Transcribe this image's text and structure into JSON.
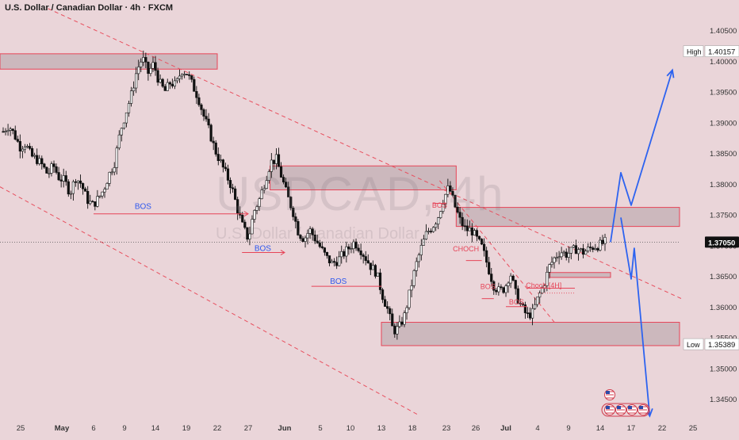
{
  "header": {
    "title": "U.S. Dollar / Canadian Dollar · 4h · FXCM"
  },
  "watermark": {
    "symbol": "USDCAD, 4h",
    "name": "U.S. Dollar / Canadian Dollar"
  },
  "chart_data": {
    "type": "candlestick",
    "ylim": [
      1.3415,
      1.4085
    ],
    "price_ticks": [
      1.405,
      1.4,
      1.395,
      1.39,
      1.385,
      1.38,
      1.375,
      1.37,
      1.365,
      1.36,
      1.355,
      1.35,
      1.345
    ],
    "x_ticks": [
      "25",
      "May",
      "6",
      "9",
      "14",
      "19",
      "22",
      "27",
      "Jun",
      "5",
      "10",
      "13",
      "18",
      "23",
      "26",
      "Jul",
      "4",
      "9",
      "14",
      "17",
      "22",
      "25"
    ],
    "current_price": "1.37050",
    "high_label": {
      "text": "High",
      "value": "1.40157"
    },
    "low_label": {
      "text": "Low",
      "value": "1.35389"
    },
    "price_path": [
      1.3885,
      1.3895,
      1.388,
      1.386,
      1.3865,
      1.3845,
      1.384,
      1.383,
      1.3815,
      1.383,
      1.381,
      1.3805,
      1.3785,
      1.381,
      1.38,
      1.3775,
      1.3765,
      1.3775,
      1.379,
      1.3815,
      1.3835,
      1.3885,
      1.3915,
      1.3945,
      1.3985,
      1.4005,
      1.398,
      1.3995,
      1.3965,
      1.395,
      1.3965,
      1.396,
      1.3985,
      1.398,
      1.396,
      1.394,
      1.391,
      1.3885,
      1.3855,
      1.3835,
      1.3815,
      1.3795,
      1.376,
      1.373,
      1.371,
      1.3755,
      1.3775,
      1.3805,
      1.3835,
      1.384,
      1.381,
      1.378,
      1.3755,
      1.372,
      1.371,
      1.3725,
      1.371,
      1.3695,
      1.368,
      1.367,
      1.3675,
      1.3685,
      1.3695,
      1.3705,
      1.3695,
      1.368,
      1.3665,
      1.3655,
      1.362,
      1.3595,
      1.356,
      1.3565,
      1.3585,
      1.3625,
      1.3665,
      1.3695,
      1.372,
      1.373,
      1.3745,
      1.3775,
      1.3795,
      1.3765,
      1.374,
      1.3725,
      1.3725,
      1.371,
      1.3695,
      1.3665,
      1.3635,
      1.3625,
      1.363,
      1.3655,
      1.362,
      1.36,
      1.3585,
      1.359,
      1.3615,
      1.3635,
      1.3665,
      1.368,
      1.369,
      1.3685,
      1.369,
      1.3695,
      1.3688,
      1.3693,
      1.3698,
      1.37,
      1.3705
    ],
    "zones": [
      {
        "from": "Apr 22",
        "to": "May 22",
        "top": 1.40115,
        "bottom": 1.39865
      },
      {
        "from": "May 30",
        "to": "Jun 24",
        "top": 1.3829,
        "bottom": 1.379
      },
      {
        "from": "Jun 24",
        "to": "Jul 24",
        "top": 1.37615,
        "bottom": 1.37305
      },
      {
        "from": "Jun 13",
        "to": "Jul 24",
        "top": 1.35745,
        "bottom": 1.35365
      },
      {
        "from": "Jul 6",
        "to": "Jul 15",
        "top": 1.36555,
        "bottom": 1.36475
      }
    ],
    "trendlines": [
      {
        "from": [
          "Apr 29",
          1.4085
        ],
        "to": [
          "Jul 24",
          1.3612
        ],
        "style": "dashed"
      },
      {
        "from": [
          "Apr 22",
          1.3795
        ],
        "to": [
          "Jun 19",
          1.3423
        ],
        "style": "dashed"
      },
      {
        "from": [
          "Jun 22",
          1.3805
        ],
        "to": [
          "Jul 7",
          1.3571
        ],
        "style": "dashed"
      }
    ],
    "annotations": [
      {
        "text": "BOS",
        "x": "May 12",
        "y": 1.3755,
        "color": "#2f58ee"
      },
      {
        "text": "BOS",
        "x": "May 29",
        "y": 1.3687,
        "color": "#2f58ee"
      },
      {
        "text": "BOS",
        "x": "Jun 8",
        "y": 1.3633,
        "color": "#2f58ee"
      },
      {
        "text": "BOS",
        "x": "Jun 22",
        "y": 1.3757,
        "color": "#e64558"
      },
      {
        "text": "CHOCH",
        "x": "Jun 25",
        "y": 1.3686,
        "color": "#e64558"
      },
      {
        "text": "BOS",
        "x": "Jun 28",
        "y": 1.3625,
        "color": "#e64558"
      },
      {
        "text": "BOS",
        "x": "Jul 2",
        "y": 1.36,
        "color": "#e64558"
      },
      {
        "text": "Choch  [4H]",
        "x": "Jul 5",
        "y": 1.3627,
        "color": "#e64558"
      }
    ],
    "projections": [
      [
        [
          "Jul 15",
          1.3705
        ],
        [
          "Jul 16",
          1.3818
        ],
        [
          "Jul 17",
          1.3765
        ],
        [
          "Jul 23",
          1.3985
        ]
      ],
      [
        [
          "Jul 16",
          1.3745
        ],
        [
          "Jul 17",
          1.3645
        ],
        [
          "Jul 17.5",
          1.3695
        ],
        [
          "Jul 20",
          1.3422
        ]
      ]
    ]
  }
}
